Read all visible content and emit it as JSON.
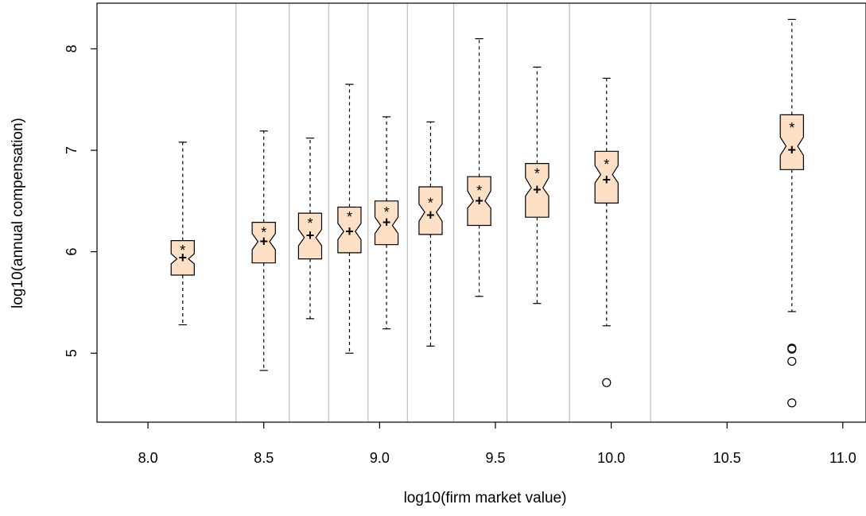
{
  "chart_data": {
    "type": "boxplot",
    "title": "",
    "xlabel": "log10(firm market value)",
    "ylabel": "log10(annual compensation)",
    "xlim": [
      7.78,
      11.1
    ],
    "ylim": [
      4.32,
      8.45
    ],
    "x_ticks": [
      "8.0",
      "8.5",
      "9.0",
      "9.5",
      "10.0",
      "10.5",
      "11.0"
    ],
    "y_ticks": [
      "5",
      "6",
      "7",
      "8"
    ],
    "group_boundaries": [
      8.38,
      8.61,
      8.78,
      8.95,
      9.12,
      9.32,
      9.55,
      9.82,
      10.17
    ],
    "colors": {
      "box_fill": "#fde0c5",
      "line": "#000000",
      "divider": "#bdbdbd"
    },
    "mean_marker": "+",
    "median_marker": "*",
    "boxes": [
      {
        "x": 8.15,
        "width": 0.1,
        "whisker_low": 5.28,
        "q1": 5.77,
        "median": 5.93,
        "q3": 6.11,
        "whisker_high": 7.08,
        "notch_low": 5.88,
        "notch_high": 5.98,
        "mean": 5.95,
        "star": 6.05,
        "outliers": []
      },
      {
        "x": 8.5,
        "width": 0.1,
        "whisker_low": 4.83,
        "q1": 5.89,
        "median": 6.1,
        "q3": 6.29,
        "whisker_high": 7.19,
        "notch_low": 6.02,
        "notch_high": 6.18,
        "mean": 6.11,
        "star": 6.23,
        "outliers": []
      },
      {
        "x": 8.7,
        "width": 0.1,
        "whisker_low": 5.34,
        "q1": 5.93,
        "median": 6.14,
        "q3": 6.38,
        "whisker_high": 7.12,
        "notch_low": 6.06,
        "notch_high": 6.22,
        "mean": 6.17,
        "star": 6.32,
        "outliers": []
      },
      {
        "x": 8.87,
        "width": 0.1,
        "whisker_low": 5.0,
        "q1": 5.99,
        "median": 6.2,
        "q3": 6.44,
        "whisker_high": 7.65,
        "notch_low": 6.12,
        "notch_high": 6.28,
        "mean": 6.21,
        "star": 6.38,
        "outliers": []
      },
      {
        "x": 9.03,
        "width": 0.1,
        "whisker_low": 5.24,
        "q1": 6.07,
        "median": 6.26,
        "q3": 6.5,
        "whisker_high": 7.33,
        "notch_low": 6.18,
        "notch_high": 6.34,
        "mean": 6.3,
        "star": 6.43,
        "outliers": []
      },
      {
        "x": 9.22,
        "width": 0.1,
        "whisker_low": 5.07,
        "q1": 6.17,
        "median": 6.39,
        "q3": 6.64,
        "whisker_high": 7.28,
        "notch_low": 6.3,
        "notch_high": 6.47,
        "mean": 6.37,
        "star": 6.52,
        "outliers": []
      },
      {
        "x": 9.43,
        "width": 0.1,
        "whisker_low": 5.56,
        "q1": 6.26,
        "median": 6.5,
        "q3": 6.74,
        "whisker_high": 8.1,
        "notch_low": 6.43,
        "notch_high": 6.6,
        "mean": 6.51,
        "star": 6.64,
        "outliers": []
      },
      {
        "x": 9.68,
        "width": 0.1,
        "whisker_low": 5.49,
        "q1": 6.34,
        "median": 6.63,
        "q3": 6.87,
        "whisker_high": 7.82,
        "notch_low": 6.55,
        "notch_high": 6.73,
        "mean": 6.62,
        "star": 6.81,
        "outliers": []
      },
      {
        "x": 9.98,
        "width": 0.1,
        "whisker_low": 5.27,
        "q1": 6.48,
        "median": 6.76,
        "q3": 6.99,
        "whisker_high": 7.71,
        "notch_low": 6.68,
        "notch_high": 6.85,
        "mean": 6.72,
        "star": 6.9,
        "outliers": [
          4.71
        ]
      },
      {
        "x": 10.78,
        "width": 0.1,
        "whisker_low": 5.41,
        "q1": 6.81,
        "median": 7.04,
        "q3": 7.35,
        "whisker_high": 8.29,
        "notch_low": 6.95,
        "notch_high": 7.13,
        "mean": 7.01,
        "star": 7.26,
        "outliers": [
          5.05,
          5.04,
          4.92,
          4.51
        ]
      }
    ]
  }
}
